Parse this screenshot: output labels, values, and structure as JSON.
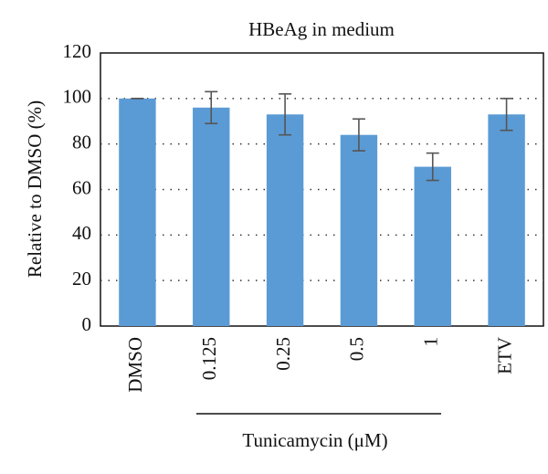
{
  "chart_data": {
    "type": "bar",
    "title": "HBeAg in medium",
    "y_label": "Relative to DMSO (%)",
    "group_label": "Tunicamycin (μM)",
    "categories": [
      "DMSO",
      "0.125",
      "0.25",
      "0.5",
      "1",
      "ETV"
    ],
    "values": [
      100,
      96,
      93,
      84,
      70,
      93
    ],
    "errors": [
      0,
      7,
      9,
      7,
      6,
      7
    ],
    "color": "#5b9bd5",
    "ylim": [
      0,
      120
    ],
    "yticks": [
      0,
      20,
      40,
      60,
      80,
      100,
      120
    ],
    "grid": true
  }
}
